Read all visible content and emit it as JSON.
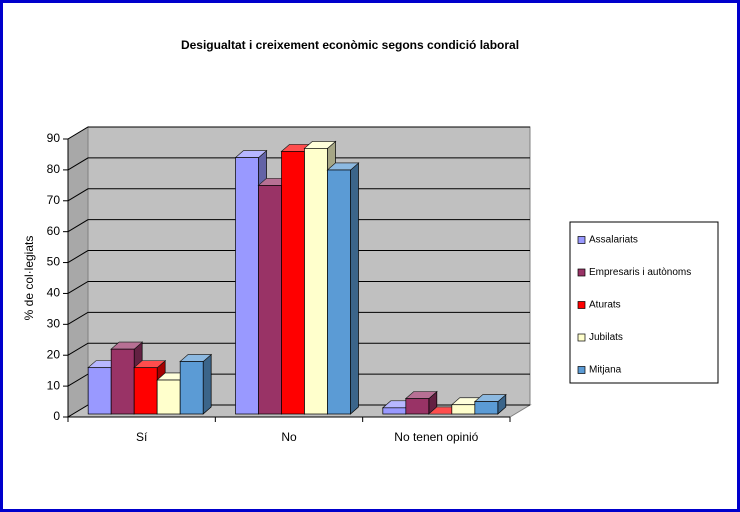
{
  "chart_data": {
    "type": "bar3d",
    "title": "Desigualtat i creixement econòmic segons condició laboral",
    "y_label": "% de col·legiats",
    "categories": [
      "Sí",
      "No",
      "No tenen opinió"
    ],
    "series": [
      {
        "name": "Assalariats",
        "color": "#9999ff",
        "values": [
          15,
          83,
          2
        ]
      },
      {
        "name": "Empresaris i autònoms",
        "color": "#993366",
        "values": [
          21,
          74,
          5
        ]
      },
      {
        "name": "Aturats",
        "color": "#ff0000",
        "values": [
          15,
          85,
          0
        ]
      },
      {
        "name": "Jubilats",
        "color": "#ffffcc",
        "values": [
          11,
          86,
          3
        ]
      },
      {
        "name": "Mitjana",
        "color": "#5b9bd5",
        "values": [
          17,
          79,
          4
        ]
      }
    ],
    "ylim": [
      0,
      90
    ],
    "yticks": [
      0,
      10,
      20,
      30,
      40,
      50,
      60,
      70,
      80,
      90
    ],
    "grid": true,
    "legend": "right"
  }
}
